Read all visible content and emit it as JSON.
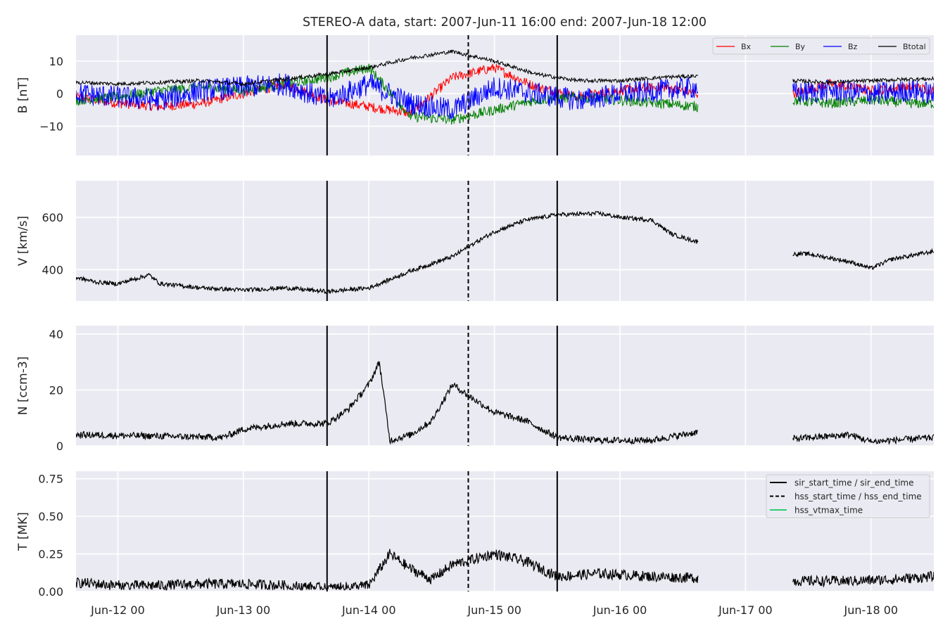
{
  "figure": {
    "title": "STEREO-A data, start: 2007-Jun-11 16:00  end: 2007-Jun-18 12:00"
  },
  "events": {
    "sir_start_time": "2007-06-13T16:00",
    "sir_end_time": "2007-06-15T12:00",
    "hss_start_time": "2007-06-14T19:00",
    "hss_end_time": "2007-06-14T19:00"
  },
  "legend_events": {
    "items": [
      {
        "label": "sir_start_time / sir_end_time",
        "style": "solid",
        "color": "#000000"
      },
      {
        "label": "hss_start_time / hss_end_time",
        "style": "dashed",
        "color": "#000000"
      },
      {
        "label": "hss_vtmax_time",
        "style": "solid",
        "color": "#2ecc71"
      }
    ]
  },
  "x_axis": {
    "start": "2007-06-11T16:00",
    "end": "2007-06-18T12:00",
    "ticks": [
      {
        "time": "2007-06-12T00:00",
        "label": "Jun-12 00"
      },
      {
        "time": "2007-06-13T00:00",
        "label": "Jun-13 00"
      },
      {
        "time": "2007-06-14T00:00",
        "label": "Jun-14 00"
      },
      {
        "time": "2007-06-15T00:00",
        "label": "Jun-15 00"
      },
      {
        "time": "2007-06-16T00:00",
        "label": "Jun-16 00"
      },
      {
        "time": "2007-06-17T00:00",
        "label": "Jun-17 00"
      },
      {
        "time": "2007-06-18T00:00",
        "label": "Jun-18 00"
      }
    ]
  },
  "data_gap": {
    "start": "2007-06-16T15:00",
    "end": "2007-06-17T09:00"
  },
  "colors": {
    "panel_bg": "#eaeaf2",
    "grid": "#ffffff",
    "bx": "#ff0000",
    "by": "#008000",
    "bz": "#0000ff",
    "btotal": "#000000",
    "series": "#000000"
  },
  "chart_data": [
    {
      "type": "line",
      "ylabel": "B [nT]",
      "ylim": [
        -19,
        18
      ],
      "yticks": [
        {
          "v": 10,
          "label": "10"
        },
        {
          "v": 0,
          "label": "0"
        },
        {
          "v": -10,
          "label": "−10"
        }
      ],
      "legend": {
        "placement": "top-right",
        "entries": [
          "Bx",
          "By",
          "Bz",
          "Btotal"
        ]
      },
      "series": [
        {
          "name": "Bx",
          "color_key": "bx",
          "x": [
            "2007-06-11T16:00",
            "2007-06-12T00:00",
            "2007-06-12T08:00",
            "2007-06-12T16:00",
            "2007-06-13T00:00",
            "2007-06-13T08:00",
            "2007-06-13T16:00",
            "2007-06-14T00:00",
            "2007-06-14T08:00",
            "2007-06-14T16:00",
            "2007-06-15T00:00",
            "2007-06-15T08:00",
            "2007-06-15T16:00",
            "2007-06-16T00:00",
            "2007-06-16T08:00",
            "2007-06-16T15:00",
            "2007-06-17T09:00",
            "2007-06-17T16:00",
            "2007-06-18T00:00",
            "2007-06-18T08:00",
            "2007-06-18T12:00"
          ],
          "values": [
            -1,
            -3,
            -4,
            -3,
            0,
            3,
            -2,
            -4,
            -6,
            5,
            8,
            2,
            -1,
            1,
            2,
            0,
            0,
            3,
            1,
            2,
            1
          ],
          "amp": 1.5
        },
        {
          "name": "By",
          "color_key": "by",
          "x": [
            "2007-06-11T16:00",
            "2007-06-12T00:00",
            "2007-06-12T08:00",
            "2007-06-12T16:00",
            "2007-06-13T00:00",
            "2007-06-13T08:00",
            "2007-06-13T16:00",
            "2007-06-14T00:00",
            "2007-06-14T08:00",
            "2007-06-14T16:00",
            "2007-06-15T00:00",
            "2007-06-15T08:00",
            "2007-06-15T16:00",
            "2007-06-16T00:00",
            "2007-06-16T08:00",
            "2007-06-16T15:00",
            "2007-06-17T09:00",
            "2007-06-17T16:00",
            "2007-06-18T00:00",
            "2007-06-18T08:00",
            "2007-06-18T12:00"
          ],
          "values": [
            -2,
            -1,
            1,
            2,
            1,
            3,
            5,
            8,
            -7,
            -8,
            -5,
            -2,
            -1,
            -2,
            -3,
            -4,
            -2,
            -3,
            -2,
            -3,
            -3
          ],
          "amp": 1.6
        },
        {
          "name": "Bz",
          "color_key": "bz",
          "x": [
            "2007-06-11T16:00",
            "2007-06-12T00:00",
            "2007-06-12T08:00",
            "2007-06-12T16:00",
            "2007-06-13T00:00",
            "2007-06-13T08:00",
            "2007-06-13T16:00",
            "2007-06-14T00:00",
            "2007-06-14T08:00",
            "2007-06-14T16:00",
            "2007-06-15T00:00",
            "2007-06-15T08:00",
            "2007-06-15T16:00",
            "2007-06-16T00:00",
            "2007-06-16T08:00",
            "2007-06-16T15:00",
            "2007-06-17T09:00",
            "2007-06-17T16:00",
            "2007-06-18T00:00",
            "2007-06-18T08:00",
            "2007-06-18T12:00"
          ],
          "values": [
            0,
            -1,
            -2,
            1,
            2,
            3,
            -2,
            3,
            -3,
            -5,
            2,
            0,
            -2,
            0,
            1,
            2,
            0,
            1,
            0,
            1,
            0
          ],
          "amp": 3.5
        },
        {
          "name": "Btotal",
          "color_key": "btotal",
          "x": [
            "2007-06-11T16:00",
            "2007-06-12T00:00",
            "2007-06-12T08:00",
            "2007-06-12T16:00",
            "2007-06-13T00:00",
            "2007-06-13T08:00",
            "2007-06-13T16:00",
            "2007-06-14T00:00",
            "2007-06-14T08:00",
            "2007-06-14T16:00",
            "2007-06-15T00:00",
            "2007-06-15T08:00",
            "2007-06-15T16:00",
            "2007-06-16T00:00",
            "2007-06-16T08:00",
            "2007-06-16T15:00",
            "2007-06-17T09:00",
            "2007-06-17T16:00",
            "2007-06-18T00:00",
            "2007-06-18T08:00",
            "2007-06-18T12:00"
          ],
          "values": [
            3.5,
            3,
            3.5,
            4,
            3,
            4.5,
            6,
            8,
            11,
            13,
            10,
            6,
            4,
            4,
            5,
            5.5,
            4,
            3.5,
            4,
            4.5,
            4.5
          ],
          "amp": 0.6
        }
      ]
    },
    {
      "type": "line",
      "ylabel": "V [km/s]",
      "ylim": [
        280,
        740
      ],
      "yticks": [
        {
          "v": 600,
          "label": "600"
        },
        {
          "v": 400,
          "label": "400"
        }
      ],
      "series": [
        {
          "name": "V",
          "color_key": "series",
          "x": [
            "2007-06-11T16:00",
            "2007-06-11T20:00",
            "2007-06-12T00:00",
            "2007-06-12T06:00",
            "2007-06-12T08:00",
            "2007-06-12T16:00",
            "2007-06-13T00:00",
            "2007-06-13T08:00",
            "2007-06-13T16:00",
            "2007-06-14T00:00",
            "2007-06-14T08:00",
            "2007-06-14T16:00",
            "2007-06-14T20:00",
            "2007-06-15T00:00",
            "2007-06-15T06:00",
            "2007-06-15T12:00",
            "2007-06-15T20:00",
            "2007-06-16T00:00",
            "2007-06-16T06:00",
            "2007-06-16T10:00",
            "2007-06-16T15:00",
            "2007-06-17T09:00",
            "2007-06-17T12:00",
            "2007-06-17T20:00",
            "2007-06-18T00:00",
            "2007-06-18T04:00",
            "2007-06-18T12:00"
          ],
          "values": [
            370,
            352,
            346,
            380,
            347,
            330,
            322,
            330,
            316,
            330,
            395,
            450,
            500,
            545,
            590,
            610,
            615,
            600,
            590,
            535,
            505,
            460,
            460,
            430,
            405,
            440,
            470
          ],
          "amp": 8
        }
      ]
    },
    {
      "type": "line",
      "ylabel": "N [ccm-3]",
      "ylim": [
        0,
        43
      ],
      "yticks": [
        {
          "v": 40,
          "label": "40"
        },
        {
          "v": 20,
          "label": "20"
        },
        {
          "v": 0,
          "label": "0"
        }
      ],
      "series": [
        {
          "name": "N",
          "color_key": "series",
          "x": [
            "2007-06-11T16:00",
            "2007-06-12T08:00",
            "2007-06-12T20:00",
            "2007-06-13T00:00",
            "2007-06-13T08:00",
            "2007-06-13T16:00",
            "2007-06-13T20:00",
            "2007-06-14T00:00",
            "2007-06-14T02:00",
            "2007-06-14T04:00",
            "2007-06-14T08:00",
            "2007-06-14T12:00",
            "2007-06-14T16:00",
            "2007-06-14T19:00",
            "2007-06-15T00:00",
            "2007-06-15T06:00",
            "2007-06-15T12:00",
            "2007-06-15T20:00",
            "2007-06-16T06:00",
            "2007-06-16T15:00",
            "2007-06-17T09:00",
            "2007-06-17T20:00",
            "2007-06-18T00:00",
            "2007-06-18T12:00"
          ],
          "values": [
            4,
            3.5,
            3,
            6,
            8,
            8,
            13,
            22,
            30,
            2,
            4,
            9,
            22,
            18,
            12,
            9,
            3,
            2,
            2,
            5,
            2.5,
            4,
            1.5,
            3
          ],
          "amp": 1.2
        }
      ]
    },
    {
      "type": "line",
      "ylabel": "T [MK]",
      "ylim": [
        0,
        0.8
      ],
      "yticks": [
        {
          "v": 0.75,
          "label": "0.75"
        },
        {
          "v": 0.5,
          "label": "0.50"
        },
        {
          "v": 0.25,
          "label": "0.25"
        },
        {
          "v": 0,
          "label": "0.00"
        }
      ],
      "series": [
        {
          "name": "T",
          "color_key": "series",
          "x": [
            "2007-06-11T16:00",
            "2007-06-12T00:00",
            "2007-06-12T08:00",
            "2007-06-12T16:00",
            "2007-06-13T00:00",
            "2007-06-13T08:00",
            "2007-06-13T16:00",
            "2007-06-14T00:00",
            "2007-06-14T04:00",
            "2007-06-14T08:00",
            "2007-06-14T12:00",
            "2007-06-14T16:00",
            "2007-06-15T00:00",
            "2007-06-15T06:00",
            "2007-06-15T12:00",
            "2007-06-15T20:00",
            "2007-06-16T06:00",
            "2007-06-16T15:00",
            "2007-06-17T09:00",
            "2007-06-17T20:00",
            "2007-06-18T04:00",
            "2007-06-18T12:00"
          ],
          "values": [
            0.06,
            0.04,
            0.04,
            0.05,
            0.05,
            0.04,
            0.02,
            0.04,
            0.25,
            0.15,
            0.08,
            0.18,
            0.25,
            0.2,
            0.1,
            0.12,
            0.1,
            0.09,
            0.07,
            0.07,
            0.08,
            0.1
          ],
          "amp": 0.035
        }
      ]
    }
  ]
}
